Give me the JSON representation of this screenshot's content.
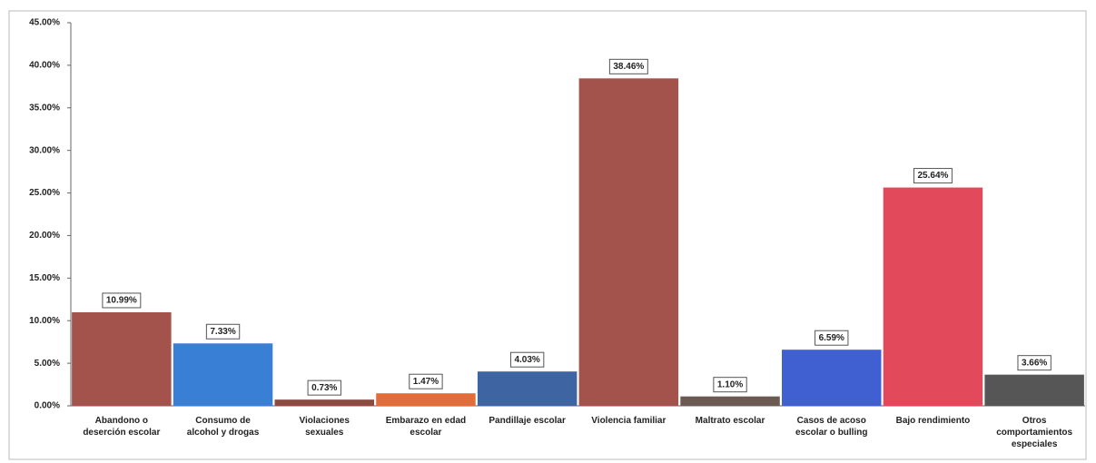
{
  "chart_data": {
    "type": "bar",
    "categories": [
      "Abandono o deserción escolar",
      "Consumo de alcohol y drogas",
      "Violaciones sexuales",
      "Embarazo en edad escolar",
      "Pandillaje escolar",
      "Violencia familiar",
      "Maltrato escolar",
      "Casos de acoso escolar o bulling",
      "Bajo rendimiento",
      "Otros comportamientos especiales"
    ],
    "values": [
      10.99,
      7.33,
      0.73,
      1.47,
      4.03,
      38.46,
      1.1,
      6.59,
      25.64,
      3.66
    ],
    "value_labels": [
      "10.99%",
      "7.33%",
      "0.73%",
      "1.47%",
      "4.03%",
      "38.46%",
      "1.10%",
      "6.59%",
      "25.64%",
      "3.66%"
    ],
    "colors": [
      "#a4524c",
      "#3a7fd6",
      "#8c4a40",
      "#e26c3a",
      "#3e65a2",
      "#a4524c",
      "#6a5a52",
      "#4060d2",
      "#e24a5c",
      "#565656"
    ],
    "ylim": [
      0,
      45
    ],
    "yticks": [
      {
        "value": 0,
        "label": "0.00%"
      },
      {
        "value": 5,
        "label": "5.00%"
      },
      {
        "value": 10,
        "label": "10.00%"
      },
      {
        "value": 15,
        "label": "15.00%"
      },
      {
        "value": 20,
        "label": "20.00%"
      },
      {
        "value": 25,
        "label": "25.00%"
      },
      {
        "value": 30,
        "label": "30.00%"
      },
      {
        "value": 35,
        "label": "35.00%"
      },
      {
        "value": 40,
        "label": "40.00%"
      },
      {
        "value": 45,
        "label": "45.00%"
      }
    ],
    "grid": false
  }
}
